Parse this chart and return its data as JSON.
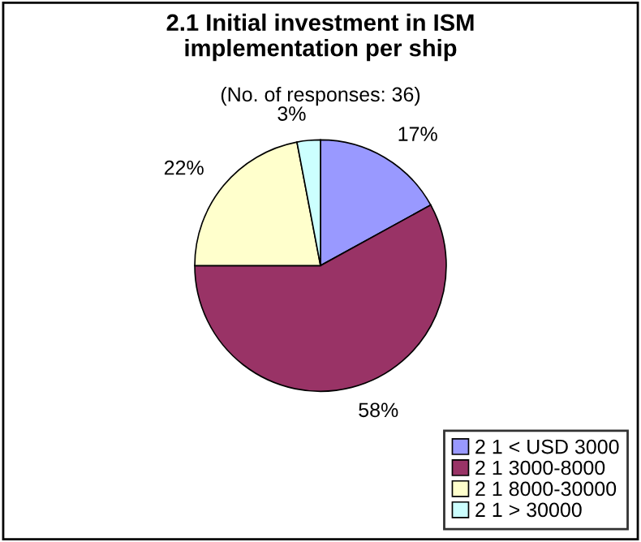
{
  "chart_data": {
    "type": "pie",
    "title": "2.1 Initial investment in ISM\nimplementation per ship",
    "subtitle": "(No. of responses: 36)",
    "categories": [
      "2 1 < USD 3000",
      "2 1 3000-8000",
      "2 1 8000-30000",
      "2 1 > 30000"
    ],
    "values": [
      17,
      58,
      22,
      3
    ],
    "value_labels": [
      "17%",
      "58%",
      "22%",
      "3%"
    ],
    "colors": [
      "#9999ff",
      "#993366",
      "#ffffcc",
      "#ccffff"
    ],
    "legend": "bottom right"
  }
}
